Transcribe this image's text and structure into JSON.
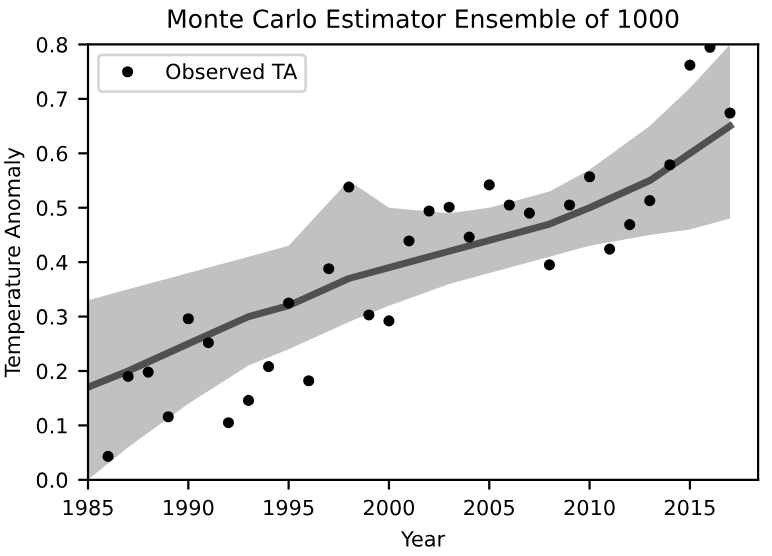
{
  "chart_data": {
    "type": "line",
    "title": "Monte Carlo Estimator Ensemble of 1000",
    "xlabel": "Year",
    "ylabel": "Temperature Anomaly",
    "xlim": [
      1985,
      2018.4
    ],
    "xticks": [
      1985,
      1990,
      1995,
      2000,
      2005,
      2010,
      2015
    ],
    "ylim": [
      0.0,
      0.8
    ],
    "yticks": [
      {
        "value": 0,
        "label": "0.0"
      },
      0.1,
      0.2,
      0.3,
      0.4,
      0.5,
      0.6,
      0.7,
      0.8
    ],
    "grid": false,
    "legend": "top left",
    "series": [
      {
        "color": "#333333",
        "x": [
          1985,
          1987,
          1990,
          1993,
          1995,
          1998,
          2000,
          2003,
          2005,
          2008,
          2010,
          2013,
          2015,
          2017
        ],
        "values": [
          0.17,
          0.2,
          0.25,
          0.3,
          0.32,
          0.37,
          0.39,
          0.42,
          0.44,
          0.47,
          0.5,
          0.55,
          0.6,
          0.65
        ],
        "lower": [
          0.0,
          0.06,
          0.14,
          0.21,
          0.24,
          0.29,
          0.32,
          0.36,
          0.38,
          0.41,
          0.43,
          0.45,
          0.46,
          0.48
        ],
        "upper": [
          0.33,
          0.35,
          0.38,
          0.41,
          0.43,
          0.55,
          0.5,
          0.49,
          0.5,
          0.53,
          0.57,
          0.65,
          0.72,
          0.8
        ]
      },
      {
        "type": "scatter",
        "name": "Observed TA",
        "color": "#000000",
        "marker": "circle",
        "x": [
          1986,
          1987,
          1988,
          1989,
          1990,
          1991,
          1992,
          1993,
          1994,
          1995,
          1996,
          1997,
          1998,
          1999,
          2000,
          2001,
          2002,
          2003,
          2004,
          2005,
          2006,
          2007,
          2008,
          2009,
          2010,
          2011,
          2012,
          2013,
          2014,
          2015,
          2016,
          2017
        ],
        "values": [
          0.043,
          0.19,
          0.198,
          0.116,
          0.296,
          0.252,
          0.105,
          0.146,
          0.208,
          0.325,
          0.182,
          0.388,
          0.538,
          0.303,
          0.292,
          0.439,
          0.494,
          0.501,
          0.446,
          0.542,
          0.505,
          0.49,
          0.395,
          0.505,
          0.557,
          0.424,
          0.469,
          0.513,
          0.579,
          0.762,
          0.795,
          0.674
        ]
      }
    ]
  }
}
